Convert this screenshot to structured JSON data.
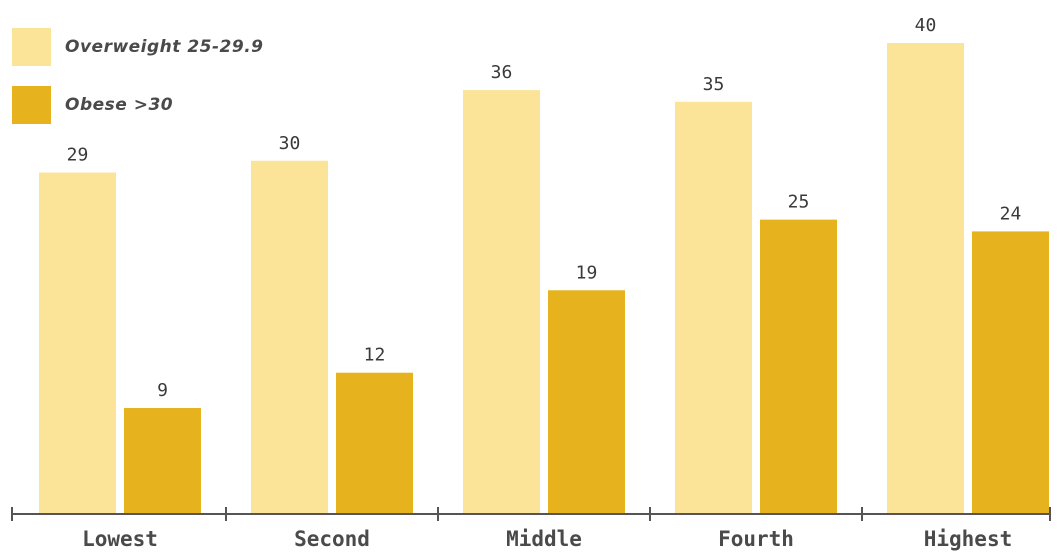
{
  "colors": {
    "overweight": "#fbe498",
    "obese": "#e6b31e",
    "axis": "#555555"
  },
  "legend": {
    "items": [
      {
        "label": "Overweight 25-29.9",
        "color": "#fbe498"
      },
      {
        "label": "Obese >30",
        "color": "#e6b31e"
      }
    ]
  },
  "chart_data": {
    "type": "bar",
    "title": "",
    "xlabel": "",
    "ylabel": "",
    "categories": [
      "Lowest",
      "Second",
      "Middle",
      "Fourth",
      "Highest"
    ],
    "series": [
      {
        "name": "Overweight 25-29.9",
        "values": [
          29,
          30,
          36,
          35,
          40
        ],
        "color": "#fbe498"
      },
      {
        "name": "Obese >30",
        "values": [
          9,
          12,
          19,
          25,
          24
        ],
        "color": "#e6b31e"
      }
    ],
    "ylim": [
      0,
      40
    ],
    "grid": false,
    "legend_position": "top-left"
  }
}
